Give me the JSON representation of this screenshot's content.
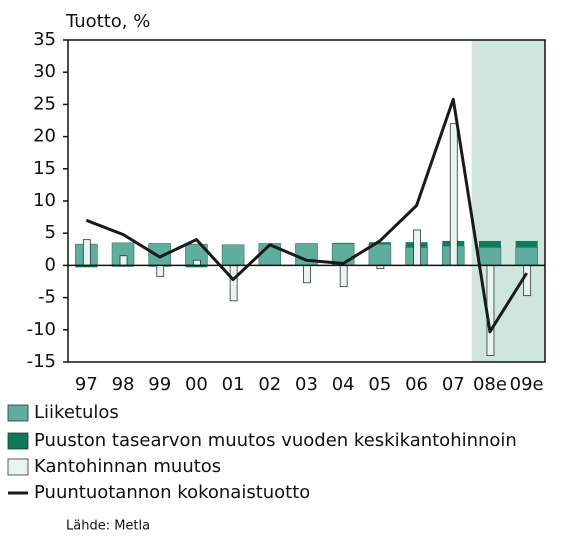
{
  "chart_data": {
    "type": "bar",
    "y_axis_label": "Tuotto, %",
    "source": "Lähde: Metla",
    "categories": [
      "97",
      "98",
      "99",
      "00",
      "01",
      "02",
      "03",
      "04",
      "05",
      "06",
      "07",
      "08e",
      "09e"
    ],
    "shade_from": "08e",
    "shade_color": "#cfe6df",
    "ylim": [
      -15,
      35
    ],
    "yticks": [
      -15,
      -10,
      -5,
      0,
      5,
      10,
      15,
      20,
      25,
      30,
      35
    ],
    "series": [
      {
        "name": "Liiketulos",
        "type": "bar",
        "color": "#5fad9c",
        "values": [
          3.3,
          3.5,
          3.4,
          3.3,
          3.2,
          3.4,
          3.4,
          3.4,
          3.3,
          2.8,
          3.0,
          2.8,
          2.8
        ]
      },
      {
        "name": "Puuston tasearvon muutos vuoden keskikantohinnoin",
        "type": "bar",
        "stack": true,
        "color": "#0d7a5a",
        "values": [
          -0.3,
          -0.2,
          -0.2,
          -0.3,
          0,
          0,
          0,
          0.1,
          0.3,
          0.8,
          0.8,
          1.0,
          1.0
        ]
      },
      {
        "name": "Kantohinnan muutos",
        "type": "bar",
        "narrow": true,
        "color": "#e8f4ef",
        "values": [
          4.0,
          1.5,
          -1.7,
          0.8,
          -5.5,
          0,
          -2.7,
          -3.3,
          -0.5,
          5.5,
          22,
          -14,
          -4.7
        ]
      },
      {
        "name": "Puuntuotannon kokonaistuotto",
        "type": "line",
        "color": "#1a1a1a",
        "values": [
          7.0,
          4.8,
          1.3,
          4.0,
          -2.2,
          3.2,
          0.8,
          0.3,
          3.8,
          9.3,
          25.8,
          -10.3,
          -1.2
        ]
      }
    ]
  }
}
